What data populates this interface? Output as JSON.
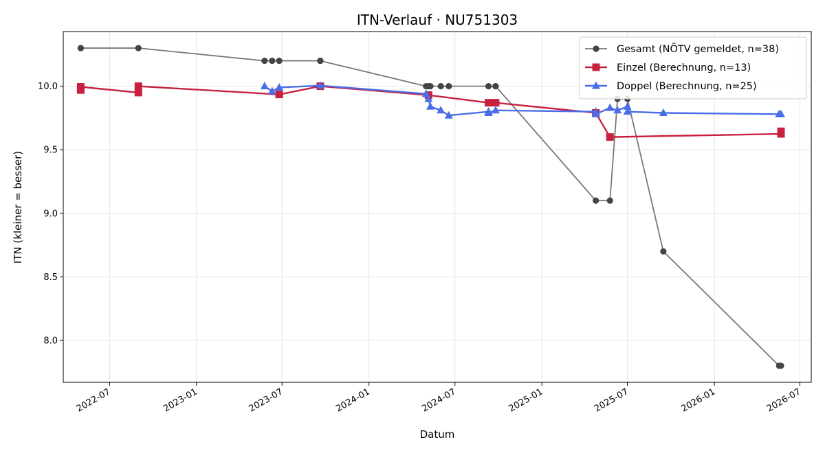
{
  "chart_data": {
    "type": "line",
    "title": "ITN-Verlauf · NU751303",
    "xlabel": "Datum",
    "ylabel": "ITN  (kleiner = besser)",
    "x_type": "date",
    "xlim": [
      "2022-03-25",
      "2026-07-25"
    ],
    "ylim": [
      7.67,
      10.43
    ],
    "x_ticks": [
      "2022-07-01",
      "2023-01-01",
      "2023-07-01",
      "2024-01-01",
      "2024-07-01",
      "2025-01-01",
      "2025-07-01",
      "2026-01-01",
      "2026-07-01"
    ],
    "x_tick_labels": [
      "2022-07",
      "2023-01",
      "2023-07",
      "2024-01",
      "2024-07",
      "2025-01",
      "2025-07",
      "2026-01",
      "2026-07"
    ],
    "y_ticks": [
      8.0,
      8.5,
      9.0,
      9.5,
      10.0
    ],
    "y_tick_labels": [
      "8.0",
      "8.5",
      "9.0",
      "9.5",
      "10.0"
    ],
    "grid": true,
    "legend_position": "top-right",
    "series": [
      {
        "name": "Gesamt (NÖTV gemeldet, n=38)",
        "color": "#777777",
        "marker_color": "#444444",
        "marker": "circle",
        "points": [
          [
            "2022-05-01",
            10.3
          ],
          [
            "2022-05-01",
            10.3
          ],
          [
            "2022-08-31",
            10.3
          ],
          [
            "2023-05-25",
            10.2
          ],
          [
            "2023-06-10",
            10.2
          ],
          [
            "2023-06-25",
            10.2
          ],
          [
            "2023-09-20",
            10.2
          ],
          [
            "2023-09-20",
            10.2
          ],
          [
            "2024-05-01",
            10.0
          ],
          [
            "2024-05-06",
            10.0
          ],
          [
            "2024-05-10",
            10.0
          ],
          [
            "2024-06-01",
            10.0
          ],
          [
            "2024-06-18",
            10.0
          ],
          [
            "2024-09-10",
            10.0
          ],
          [
            "2024-09-25",
            10.0
          ],
          [
            "2024-09-25",
            10.0
          ],
          [
            "2025-04-25",
            9.1
          ],
          [
            "2025-05-25",
            9.1
          ],
          [
            "2025-06-10",
            9.9
          ],
          [
            "2025-07-01",
            9.9
          ],
          [
            "2025-09-15",
            8.7
          ],
          [
            "2026-05-18",
            7.8
          ],
          [
            "2026-05-22",
            7.8
          ]
        ]
      },
      {
        "name": "Einzel (Berechnung, n=13)",
        "color": "#c8203f",
        "marker_color": "#c8203f",
        "marker": "square",
        "points": [
          [
            "2022-05-01",
            9.97
          ],
          [
            "2022-05-01",
            9.995
          ],
          [
            "2022-08-31",
            9.95
          ],
          [
            "2022-08-31",
            10.0
          ],
          [
            "2023-06-25",
            9.935
          ],
          [
            "2023-09-20",
            10.0
          ],
          [
            "2024-05-06",
            9.93
          ],
          [
            "2024-09-10",
            9.87
          ],
          [
            "2024-09-25",
            9.87
          ],
          [
            "2025-04-25",
            9.79
          ],
          [
            "2025-05-25",
            9.6
          ],
          [
            "2026-05-22",
            9.625
          ],
          [
            "2026-05-22",
            9.645
          ]
        ]
      },
      {
        "name": "Doppel (Berechnung, n=25)",
        "color": "#4a6de8",
        "marker_color": "#4a6de8",
        "marker": "triangle",
        "points": [
          [
            "2023-05-25",
            10.0
          ],
          [
            "2023-06-10",
            9.96
          ],
          [
            "2023-06-25",
            9.99
          ],
          [
            "2023-09-20",
            10.005
          ],
          [
            "2024-05-01",
            9.94
          ],
          [
            "2024-05-06",
            9.9
          ],
          [
            "2024-05-10",
            9.84
          ],
          [
            "2024-06-01",
            9.81
          ],
          [
            "2024-06-18",
            9.77
          ],
          [
            "2024-09-10",
            9.8
          ],
          [
            "2024-09-10",
            9.79
          ],
          [
            "2024-09-25",
            9.81
          ],
          [
            "2025-04-25",
            9.8
          ],
          [
            "2025-04-25",
            9.78
          ],
          [
            "2025-05-25",
            9.83
          ],
          [
            "2025-06-10",
            9.81
          ],
          [
            "2025-07-01",
            9.84
          ],
          [
            "2025-07-01",
            9.8
          ],
          [
            "2025-09-15",
            9.79
          ],
          [
            "2026-05-18",
            9.78
          ],
          [
            "2026-05-22",
            9.78
          ]
        ]
      }
    ]
  }
}
